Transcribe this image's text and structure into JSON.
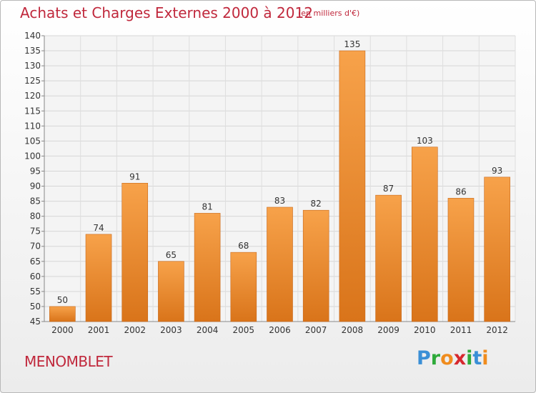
{
  "title": "Achats et Charges Externes 2000 à 2012",
  "subtitle": "(en milliers d'€)",
  "commune": "MENOMBLET",
  "logo": {
    "text": "Proxiti",
    "letters": [
      {
        "char": "P",
        "color": "#3a8fd6"
      },
      {
        "char": "r",
        "color": "#2eaa3a"
      },
      {
        "char": "o",
        "color": "#f08c1e"
      },
      {
        "char": "x",
        "color": "#d6282e"
      },
      {
        "char": "i",
        "color": "#2eaa3a"
      },
      {
        "char": "t",
        "color": "#3a8fd6"
      },
      {
        "char": "i",
        "color": "#f08c1e"
      }
    ]
  },
  "colors": {
    "text_accent": "#c0283c",
    "bar_light": "#f7a24a",
    "bar_dark": "#d9741a"
  },
  "chart_data": {
    "type": "bar",
    "categories": [
      "2000",
      "2001",
      "2002",
      "2003",
      "2004",
      "2005",
      "2006",
      "2007",
      "2008",
      "2009",
      "2010",
      "2011",
      "2012"
    ],
    "values": [
      50,
      74,
      91,
      65,
      81,
      68,
      83,
      82,
      135,
      87,
      103,
      86,
      93
    ],
    "ylim": [
      45,
      140
    ],
    "yticks": [
      45,
      50,
      55,
      60,
      65,
      70,
      75,
      80,
      85,
      90,
      95,
      100,
      105,
      110,
      115,
      120,
      125,
      130,
      135,
      140
    ],
    "grid": true,
    "title": "Achats et Charges Externes 2000 à 2012",
    "subtitle": "(en milliers d'€)"
  }
}
